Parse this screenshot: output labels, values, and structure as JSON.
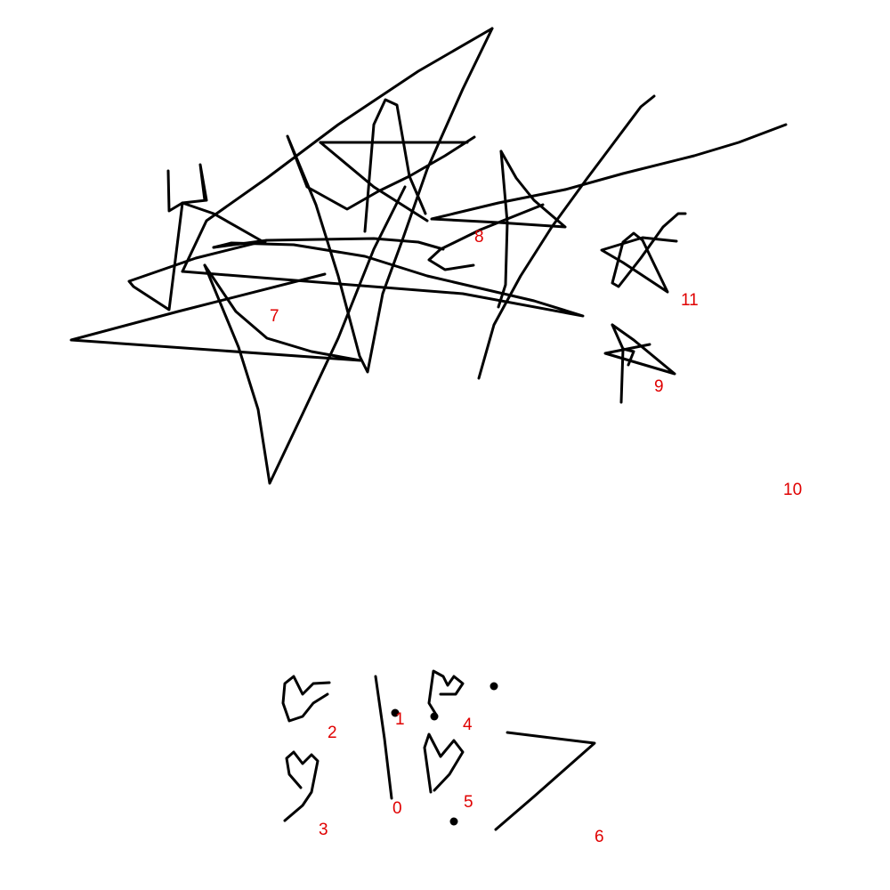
{
  "colors": {
    "background": "#ffffff",
    "stroke": "#000000",
    "label": "#e00000"
  },
  "labels": {
    "l0": "0",
    "l1": "1",
    "l2": "2",
    "l3": "3",
    "l4": "4",
    "l5": "5",
    "l6": "6",
    "l7": "7",
    "l8": "8",
    "l9": "9",
    "l10": "10",
    "l11": "11"
  }
}
